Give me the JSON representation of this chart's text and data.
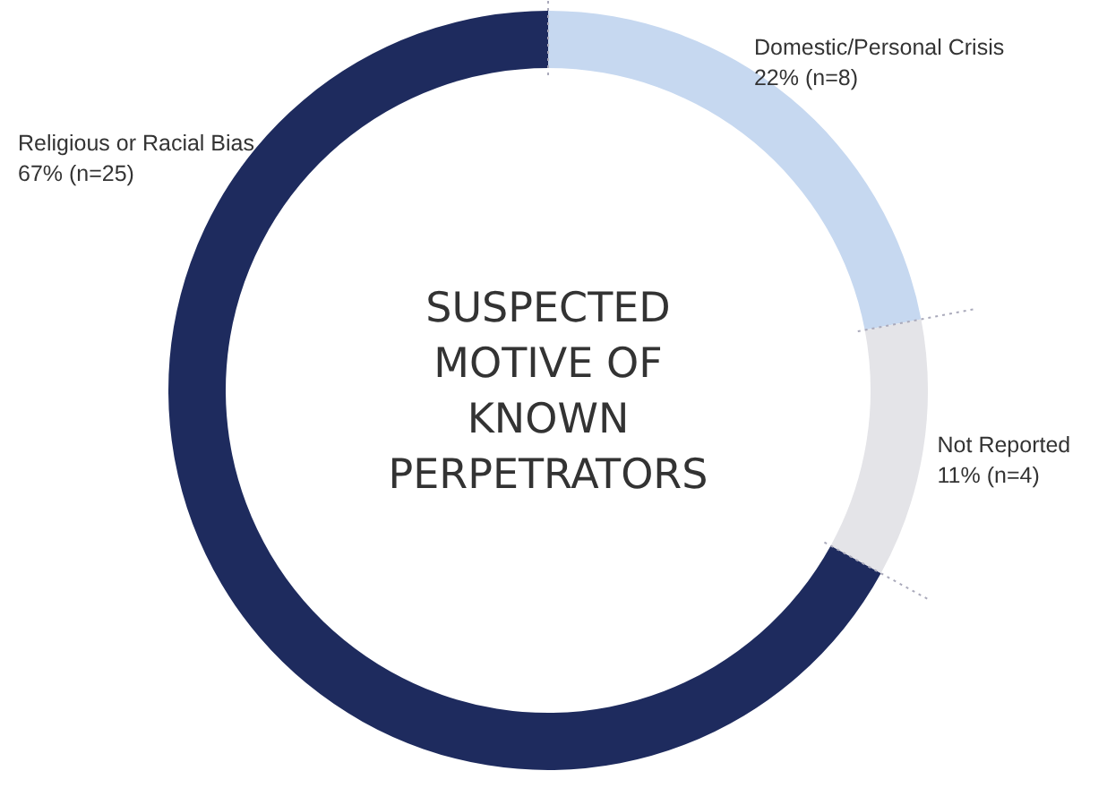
{
  "chart_data": {
    "type": "donut",
    "title": "SUSPECTED MOTIVE OF KNOWN PERPETRATORS",
    "categories": [
      "Domestic/Personal Crisis",
      "Not Reported",
      "Religious or Racial Bias"
    ],
    "values": [
      22,
      11,
      67
    ],
    "value_labels": [
      "22% (n=8)",
      "11% (n=4)",
      "67% (n=25)"
    ],
    "colors": [
      "#c6d8f0",
      "#e4e4e8",
      "#1e2b5e"
    ]
  }
}
